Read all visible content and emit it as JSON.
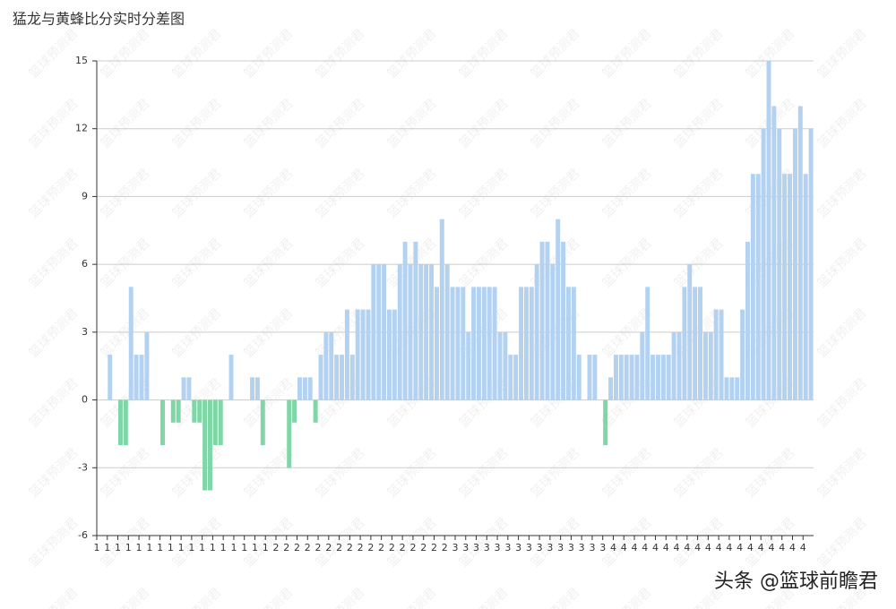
{
  "chart_data": {
    "type": "bar",
    "title": "猛龙与黄蜂比分实时分差图",
    "watermark": "篮球预测君",
    "credit": "头条 @篮球前瞻君",
    "categories": [
      "1",
      null,
      "1",
      null,
      "1",
      null,
      "1",
      null,
      "1",
      null,
      "1",
      null,
      "1",
      null,
      "1",
      null,
      "1",
      null,
      "1",
      null,
      "1",
      null,
      "1",
      null,
      "1",
      null,
      "1",
      null,
      "1",
      null,
      "1",
      null,
      "1",
      null,
      "2",
      null,
      "2",
      null,
      "2",
      null,
      "2",
      null,
      "2",
      null,
      "2",
      null,
      "2",
      null,
      "2",
      null,
      "2",
      null,
      "2",
      null,
      "2",
      null,
      "2",
      null,
      "2",
      null,
      "2",
      null,
      "2",
      null,
      "2",
      null,
      "2",
      null,
      "3",
      null,
      "3",
      null,
      "3",
      null,
      "3",
      null,
      "3",
      null,
      "3",
      null,
      "3",
      null,
      "3",
      null,
      "3",
      null,
      "3",
      null,
      "3",
      null,
      "3",
      null,
      "3",
      null,
      "3",
      null,
      "3",
      null,
      "4",
      null,
      "4",
      null,
      "4",
      null,
      "4",
      null,
      "4",
      null,
      "4",
      null,
      "4",
      null,
      "4",
      null,
      "4",
      null,
      "4",
      null,
      "4",
      null,
      "4",
      null,
      "4",
      null,
      "4",
      null,
      "4",
      null,
      "4",
      null,
      "4",
      null,
      "4",
      null,
      "4",
      null
    ],
    "values": [
      0,
      0,
      2,
      0,
      -2,
      -2,
      5,
      2,
      2,
      3,
      0,
      0,
      -2,
      0,
      -1,
      -1,
      1,
      1,
      -1,
      -1,
      -4,
      -4,
      -2,
      -2,
      0,
      2,
      0,
      0,
      0,
      1,
      1,
      -2,
      0,
      0,
      0,
      0,
      -3,
      -1,
      1,
      1,
      1,
      -1,
      2,
      3,
      3,
      2,
      2,
      4,
      2,
      4,
      4,
      4,
      6,
      6,
      6,
      4,
      4,
      6,
      7,
      6,
      7,
      6,
      6,
      6,
      5,
      8,
      6,
      5,
      5,
      5,
      3,
      5,
      5,
      5,
      5,
      5,
      3,
      3,
      2,
      2,
      5,
      5,
      5,
      6,
      7,
      7,
      6,
      8,
      7,
      5,
      5,
      2,
      0,
      2,
      2,
      0,
      -2,
      1,
      2,
      2,
      2,
      2,
      2,
      3,
      5,
      2,
      2,
      2,
      2,
      3,
      3,
      5,
      6,
      5,
      5,
      3,
      3,
      4,
      4,
      1,
      1,
      1,
      4,
      7,
      10,
      10,
      12,
      15,
      13,
      12,
      10,
      10,
      12,
      13,
      10,
      12
    ],
    "color": "#b3d1f0",
    "negative_color": "#7fd6a6",
    "ylim": [
      -6,
      15
    ],
    "yticks": [
      -6,
      -3,
      0,
      3,
      6,
      9,
      12,
      15
    ],
    "grid": true
  }
}
